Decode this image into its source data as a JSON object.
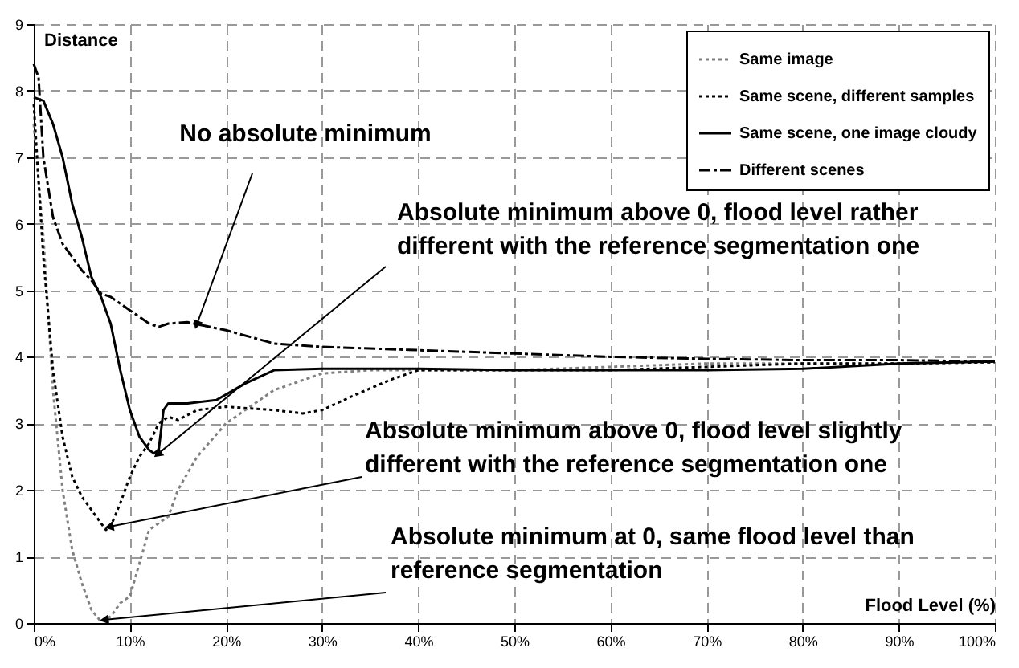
{
  "chart_data": {
    "type": "line",
    "xlabel": "Flood Level (%)",
    "ylabel": "Distance",
    "xlim": [
      0,
      100
    ],
    "ylim": [
      0,
      9
    ],
    "xticks": [
      {
        "value": 0,
        "label": "0%"
      },
      {
        "value": 10,
        "label": "10%"
      },
      {
        "value": 20,
        "label": "20%"
      },
      {
        "value": 30,
        "label": "30%"
      },
      {
        "value": 40,
        "label": "40%"
      },
      {
        "value": 50,
        "label": "50%"
      },
      {
        "value": 60,
        "label": "60%"
      },
      {
        "value": 70,
        "label": "70%"
      },
      {
        "value": 80,
        "label": "80%"
      },
      {
        "value": 90,
        "label": "90%"
      },
      {
        "value": 100,
        "label": "100%"
      }
    ],
    "yticks": [
      0,
      1,
      2,
      3,
      4,
      5,
      6,
      7,
      8,
      9
    ],
    "grid": true,
    "legend": "top right",
    "marker": "none",
    "series": [
      {
        "name": "Same image",
        "color": "#808080",
        "line_style": "dotted",
        "x": [
          0,
          1,
          2,
          3,
          4,
          5,
          6,
          7,
          8,
          9,
          10,
          11,
          12,
          13,
          14,
          15,
          17,
          20,
          25,
          30,
          35,
          40,
          50,
          60,
          70,
          80,
          90,
          100
        ],
        "values": [
          7.5,
          5.8,
          3.5,
          2.0,
          1.1,
          0.6,
          0.2,
          0.02,
          0.1,
          0.3,
          0.4,
          0.9,
          1.4,
          1.5,
          1.6,
          2.0,
          2.5,
          3.0,
          3.5,
          3.75,
          3.8,
          3.8,
          3.8,
          3.85,
          3.9,
          3.9,
          3.9,
          3.92
        ]
      },
      {
        "name": "Same scene, different samples",
        "color": "#000000",
        "line_style": "dotted",
        "x": [
          0,
          1,
          2,
          3,
          4,
          5,
          6,
          7,
          7.5,
          8,
          9,
          10,
          11,
          12,
          13,
          14,
          15,
          17,
          20,
          25,
          28,
          30,
          33,
          37,
          40,
          50,
          60,
          70,
          80,
          90,
          100
        ],
        "values": [
          7.8,
          5.5,
          3.8,
          2.8,
          2.2,
          1.9,
          1.7,
          1.5,
          1.4,
          1.45,
          1.8,
          2.2,
          2.5,
          2.7,
          3.0,
          3.1,
          3.05,
          3.2,
          3.25,
          3.2,
          3.15,
          3.2,
          3.4,
          3.65,
          3.8,
          3.8,
          3.8,
          3.85,
          3.9,
          3.9,
          3.92
        ]
      },
      {
        "name": "Same scene, one image cloudy",
        "color": "#000000",
        "line_style": "solid",
        "x": [
          0,
          1,
          2,
          3,
          4,
          5,
          6,
          7,
          7.5,
          8,
          9,
          10,
          11,
          12,
          12.5,
          13,
          13.5,
          14,
          16,
          19,
          22,
          25,
          30,
          40,
          50,
          60,
          70,
          80,
          90,
          100
        ],
        "values": [
          7.9,
          7.85,
          7.5,
          7.0,
          6.3,
          5.8,
          5.2,
          4.9,
          4.7,
          4.5,
          3.8,
          3.2,
          2.8,
          2.6,
          2.55,
          2.6,
          3.2,
          3.3,
          3.3,
          3.35,
          3.6,
          3.8,
          3.82,
          3.82,
          3.8,
          3.8,
          3.8,
          3.82,
          3.9,
          3.93
        ]
      },
      {
        "name": "Different scenes",
        "color": "#000000",
        "line_style": "dashed",
        "x": [
          0,
          0.5,
          1,
          2,
          3,
          4,
          5,
          6,
          7,
          8,
          10,
          12,
          13,
          14,
          16,
          20,
          25,
          30,
          40,
          50,
          60,
          70,
          80,
          90,
          100
        ],
        "values": [
          8.4,
          8.2,
          7.0,
          6.1,
          5.7,
          5.5,
          5.3,
          5.15,
          4.95,
          4.9,
          4.7,
          4.5,
          4.45,
          4.5,
          4.52,
          4.4,
          4.2,
          4.15,
          4.1,
          4.05,
          4.0,
          3.97,
          3.95,
          3.95,
          3.93
        ]
      }
    ],
    "annotations": [
      {
        "text": "No absolute minimum",
        "x": 17,
        "y": 4.5
      },
      {
        "text": "Absolute minimum above 0, flood level rather different with the reference segmentation one",
        "x": 13,
        "y": 2.55
      },
      {
        "text": "Absolute minimum above 0, flood level slightly different with the reference segmentation one",
        "x": 8,
        "y": 1.45
      },
      {
        "text": "Absolute minimum at 0, same flood level than reference segmentation",
        "x": 7.5,
        "y": 0.05
      }
    ]
  }
}
